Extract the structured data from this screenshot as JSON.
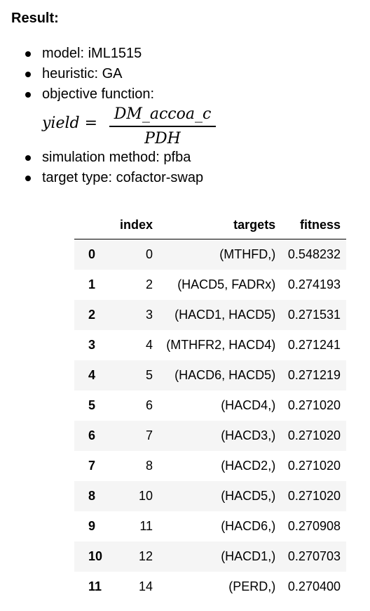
{
  "heading": "Result:",
  "summary": {
    "model": "model: iML1515",
    "heuristic": "heuristic: GA",
    "objective": "objective function:",
    "formula": {
      "lhs": "yield =",
      "numerator": "DM_accoa_c",
      "denominator": "PDH"
    },
    "simulation": "simulation method: pfba",
    "target_type": "target type: cofactor-swap"
  },
  "table": {
    "columns": [
      "",
      "index",
      "targets",
      "fitness"
    ],
    "rows": [
      {
        "row": "0",
        "index": "0",
        "targets": "(MTHFD,)",
        "fitness": "0.548232"
      },
      {
        "row": "1",
        "index": "2",
        "targets": "(HACD5, FADRx)",
        "fitness": "0.274193"
      },
      {
        "row": "2",
        "index": "3",
        "targets": "(HACD1, HACD5)",
        "fitness": "0.271531"
      },
      {
        "row": "3",
        "index": "4",
        "targets": "(MTHFR2, HACD4)",
        "fitness": "0.271241"
      },
      {
        "row": "4",
        "index": "5",
        "targets": "(HACD6, HACD5)",
        "fitness": "0.271219"
      },
      {
        "row": "5",
        "index": "6",
        "targets": "(HACD4,)",
        "fitness": "0.271020"
      },
      {
        "row": "6",
        "index": "7",
        "targets": "(HACD3,)",
        "fitness": "0.271020"
      },
      {
        "row": "7",
        "index": "8",
        "targets": "(HACD2,)",
        "fitness": "0.271020"
      },
      {
        "row": "8",
        "index": "10",
        "targets": "(HACD5,)",
        "fitness": "0.271020"
      },
      {
        "row": "9",
        "index": "11",
        "targets": "(HACD6,)",
        "fitness": "0.270908"
      },
      {
        "row": "10",
        "index": "12",
        "targets": "(HACD1,)",
        "fitness": "0.270703"
      },
      {
        "row": "11",
        "index": "14",
        "targets": "(PERD,)",
        "fitness": "0.270400"
      }
    ]
  },
  "colors": {
    "stripe": "#f5f5f5",
    "text": "#000000",
    "background": "#ffffff"
  }
}
